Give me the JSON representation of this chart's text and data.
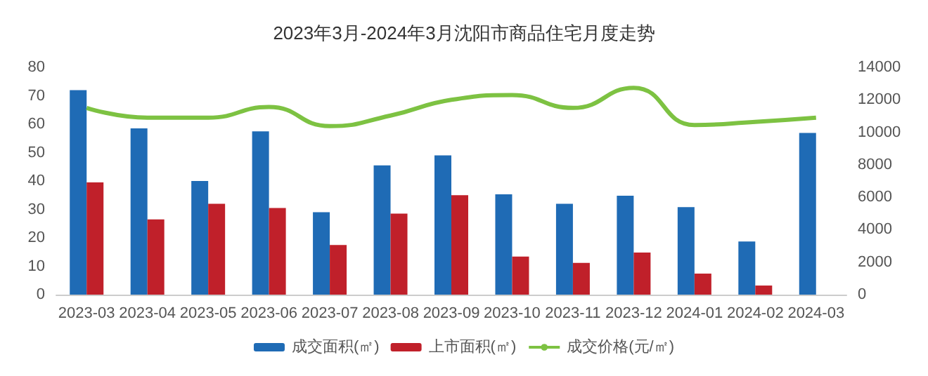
{
  "chart_data": {
    "type": "bar",
    "title": "2023年3月-2024年3月沈阳市商品住宅月度走势",
    "categories": [
      "2023-03",
      "2023-04",
      "2023-05",
      "2023-06",
      "2023-07",
      "2023-08",
      "2023-09",
      "2023-10",
      "2023-11",
      "2023-12",
      "2024-01",
      "2024-02",
      "2024-03"
    ],
    "series": [
      {
        "name": "成交面积(㎡)",
        "color": "#1f6bb5",
        "values": [
          72,
          58.5,
          40,
          57.5,
          29,
          45.5,
          49,
          35.3,
          32,
          34.8,
          30.8,
          18.7,
          56.9
        ]
      },
      {
        "name": "上市面积(㎡)",
        "color": "#c0202a",
        "values": [
          39.5,
          26.5,
          32,
          30.5,
          17.5,
          28.5,
          35,
          13.4,
          11.2,
          14.8,
          7.4,
          3.2,
          null
        ]
      },
      {
        "name": "成交价格(元/㎡)",
        "color": "#7dc242",
        "type": "line",
        "axis": "y2",
        "values": [
          11500,
          10900,
          10900,
          11560,
          10380,
          11030,
          12000,
          12290,
          11500,
          12740,
          10450,
          10640,
          10900
        ]
      }
    ],
    "ylim": [
      0,
      80
    ],
    "yticks": [
      0,
      10,
      20,
      30,
      40,
      50,
      60,
      70,
      80
    ],
    "y2lim": [
      0,
      14000
    ],
    "y2ticks": [
      0,
      2000,
      4000,
      6000,
      8000,
      10000,
      12000,
      14000
    ],
    "grid": false,
    "legend": "bottom",
    "marker": "none",
    "line_style": "solid"
  }
}
